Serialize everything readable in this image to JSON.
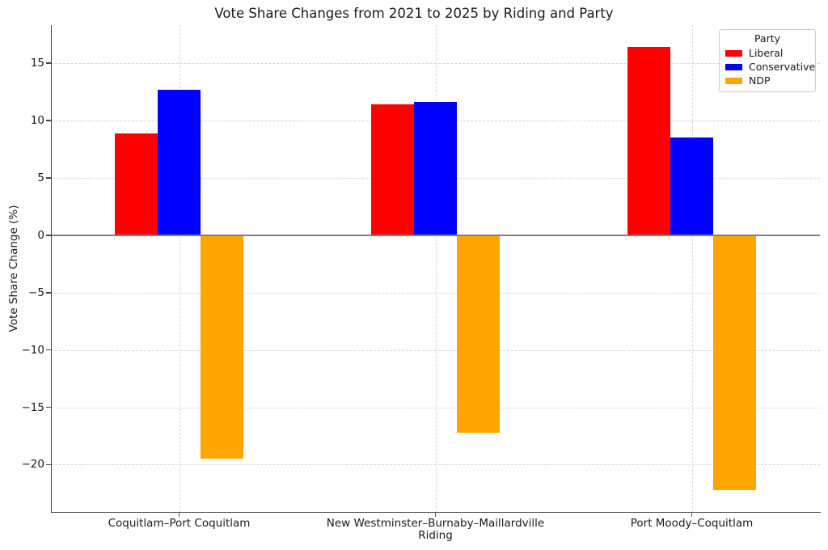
{
  "chart_data": {
    "type": "bar",
    "title": "Vote Share Changes from 2021 to 2025 by Riding and Party",
    "xlabel": "Riding",
    "ylabel": "Vote Share Change (%)",
    "categories": [
      "Coquitlam–Port Coquitlam",
      "New Westminster–Burnaby–Maillardville",
      "Port Moody–Coquitlam"
    ],
    "series": [
      {
        "name": "Liberal",
        "color": "#ff0000",
        "values": [
          8.9,
          11.4,
          16.4
        ]
      },
      {
        "name": "Conservative",
        "color": "#0000ff",
        "values": [
          12.7,
          11.6,
          8.5
        ]
      },
      {
        "name": "NDP",
        "color": "#ffa500",
        "values": [
          -19.5,
          -17.2,
          -22.2
        ]
      }
    ],
    "legend": {
      "title": "Party",
      "position": "upper right"
    },
    "ylim": [
      -24.13,
      18.33
    ],
    "yticks": [
      15,
      10,
      5,
      0,
      -5,
      -10,
      -15,
      -20
    ],
    "grid": true,
    "grid_style": "dashed",
    "grid_color": "#d7d7d7",
    "zero_line": true,
    "zero_line_color": "#7f7f7f",
    "background_color": "#ffffff",
    "bar_group_width_fraction": 0.5
  }
}
